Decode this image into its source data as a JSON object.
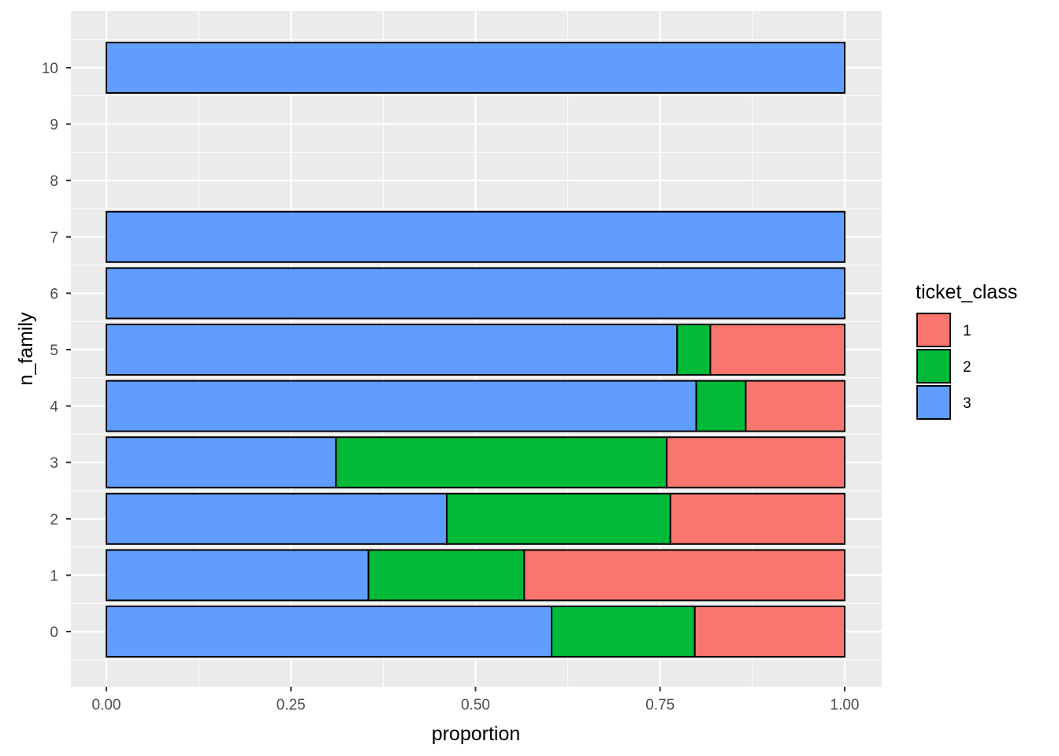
{
  "chart_data": {
    "type": "bar",
    "orientation": "horizontal",
    "stacked": true,
    "position": "fill",
    "xlabel": "proportion",
    "ylabel": "n_family",
    "xlim": [
      0,
      1
    ],
    "x_ticks": [
      "0.00",
      "0.25",
      "0.50",
      "0.75",
      "1.00"
    ],
    "categories": [
      "0",
      "1",
      "2",
      "3",
      "4",
      "5",
      "6",
      "7",
      "8",
      "9",
      "10"
    ],
    "legend": {
      "title": "ticket_class",
      "placement": "right",
      "entries": [
        {
          "label": "1",
          "color": "#F8766D"
        },
        {
          "label": "2",
          "color": "#00BA38"
        },
        {
          "label": "3",
          "color": "#619CFF"
        }
      ]
    },
    "stack_order": [
      "3",
      "2",
      "1"
    ],
    "series": [
      {
        "name": "1",
        "color": "#F8766D",
        "values": [
          0.203,
          0.434,
          0.236,
          0.241,
          0.134,
          0.182,
          0.0,
          0.0,
          null,
          null,
          0.0
        ]
      },
      {
        "name": "2",
        "color": "#00BA38",
        "values": [
          0.194,
          0.211,
          0.303,
          0.448,
          0.067,
          0.045,
          0.0,
          0.0,
          null,
          null,
          0.0
        ]
      },
      {
        "name": "3",
        "color": "#619CFF",
        "values": [
          0.603,
          0.355,
          0.461,
          0.311,
          0.799,
          0.773,
          1.0,
          1.0,
          null,
          null,
          1.0
        ]
      }
    ],
    "grid": true,
    "background": "#EBEBEB"
  }
}
